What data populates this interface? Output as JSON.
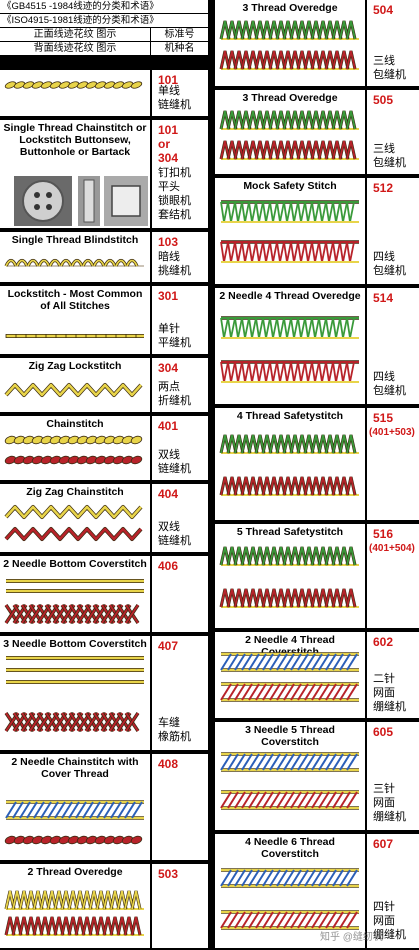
{
  "header": {
    "std1": "《GB4515 -1984线迹的分类和术语》",
    "std2": "《ISO4915-1981线迹的分类和术语》",
    "front_label": "正面线迹花纹 图示",
    "std_no_label": "标准号",
    "back_label": "背面线迹花纹 图示",
    "machine_label": "机种名"
  },
  "left": [
    {
      "title": "",
      "code": "101",
      "machine": "单线\n链缝机"
    },
    {
      "title": "Single Thread Chainstitch or Lockstitch Buttonsew, Buttonhole or Bartack",
      "code": "101\nor\n304",
      "machine": "钉扣机\n平头\n锁眼机\n套结机"
    },
    {
      "title": "Single Thread Blindstitch",
      "code": "103",
      "machine": "暗线\n挑缝机"
    },
    {
      "title": "Lockstitch - Most Common of All Stitches",
      "code": "301",
      "machine": "单针\n平缝机"
    },
    {
      "title": "Zig Zag Lockstitch",
      "code": "304",
      "machine": "两点\n折缝机"
    },
    {
      "title": "Chainstitch",
      "code": "401",
      "machine": "双线\n链缝机"
    },
    {
      "title": "Zig Zag Chainstitch",
      "code": "404",
      "machine": "双线\n链缝机"
    },
    {
      "title": "2 Needle Bottom Coverstitch",
      "code": "406",
      "machine": ""
    },
    {
      "title": "3 Needle Bottom Coverstitch",
      "code": "407",
      "machine": "车缝\n橡筋机"
    },
    {
      "title": "2 Needle Chainstitch with Cover Thread",
      "code": "408",
      "machine": ""
    },
    {
      "title": "2 Thread Overedge",
      "code": "503",
      "machine": ""
    }
  ],
  "right": [
    {
      "title": "3 Thread Overedge",
      "code": "504",
      "machine": "三线\n包缝机"
    },
    {
      "title": "3 Thread Overedge",
      "code": "505",
      "machine": "三线\n包缝机"
    },
    {
      "title": "Mock Safety Stitch",
      "code": "512",
      "machine": "四线\n包缝机"
    },
    {
      "title": "2 Needle 4 Thread Overedge",
      "code": "514",
      "machine": "四线\n包缝机"
    },
    {
      "title": "4 Thread Safetystitch",
      "code": "515",
      "code_sub": "(401+503)",
      "machine": ""
    },
    {
      "title": "5 Thread Safetystitch",
      "code": "516",
      "code_sub": "(401+504)",
      "machine": ""
    },
    {
      "title": "2 Needle 4 Thread Coverstitch",
      "code": "602",
      "machine": "二针\n网面\n绷缝机"
    },
    {
      "title": "3 Needle 5 Thread Coverstitch",
      "code": "605",
      "machine": "三针\n网面\n绷缝机"
    },
    {
      "title": "4 Needle 6 Thread Coverstitch",
      "code": "607",
      "machine": "四针\n网面\n绷缝机"
    }
  ],
  "watermark": "知乎 @缝纫机",
  "colors": {
    "code_red": "#d01818",
    "thread_yellow": "#e8d44a",
    "thread_red": "#b8232a",
    "thread_green": "#3a9a3a",
    "thread_blue": "#2b5fb8"
  }
}
